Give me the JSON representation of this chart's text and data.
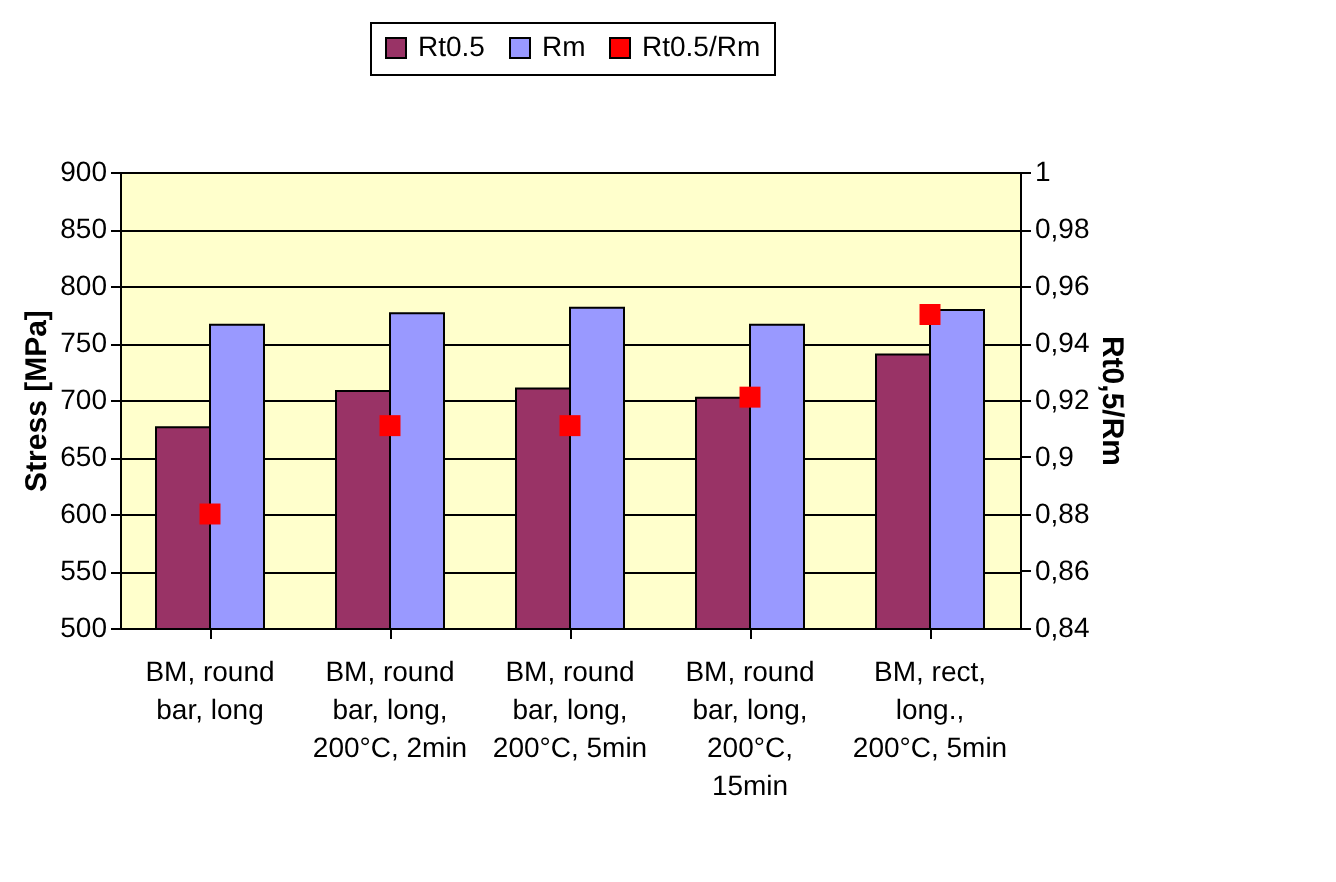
{
  "chart_data": {
    "type": "bar",
    "categories": [
      "BM, round bar, long",
      "BM, round bar, long, 200°C, 2min",
      "BM, round bar, long, 200°C, 5min",
      "BM, round bar, long, 200°C, 15min",
      "BM, rect, long., 200°C, 5min"
    ],
    "series": [
      {
        "name": "Rt0.5",
        "color": "#993366",
        "values": [
          676,
          708,
          710,
          702,
          740
        ]
      },
      {
        "name": "Rm",
        "color": "#9999ff",
        "values": [
          766,
          776,
          781,
          766,
          779
        ]
      },
      {
        "name": "Rt0.5/Rm",
        "color": "#ff0000",
        "type": "scatter",
        "axis": "y2",
        "values": [
          0.88,
          0.911,
          0.911,
          0.921,
          0.95
        ]
      }
    ],
    "ylabel": "Stress [MPa]",
    "y2label": "Rt0,5/Rm",
    "ylim": [
      500,
      900
    ],
    "yticks": [
      500,
      550,
      600,
      650,
      700,
      750,
      800,
      850,
      900
    ],
    "y2lim": [
      0.84,
      1
    ],
    "y2ticks": [
      {
        "value": 0.84,
        "label": "0,84"
      },
      {
        "value": 0.86,
        "label": "0,86"
      },
      {
        "value": 0.88,
        "label": "0,88"
      },
      {
        "value": 0.9,
        "label": "0,9"
      },
      {
        "value": 0.92,
        "label": "0,92"
      },
      {
        "value": 0.94,
        "label": "0,94"
      },
      {
        "value": 0.96,
        "label": "0,96"
      },
      {
        "value": 0.98,
        "label": "0,98"
      },
      {
        "value": 1,
        "label": "1"
      }
    ],
    "grid": "y",
    "legend": "top",
    "marker": "square"
  }
}
